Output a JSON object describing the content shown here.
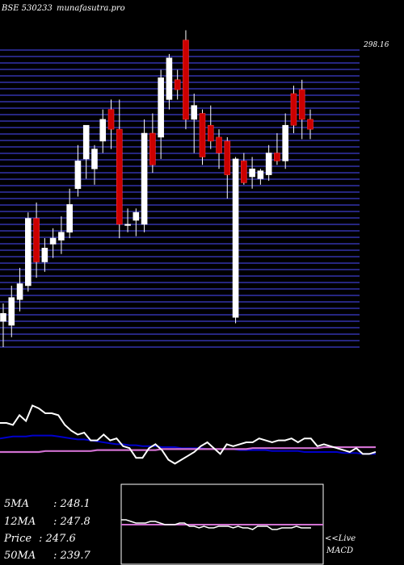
{
  "header": {
    "symbol": "BSE 530233",
    "site": "munafasutra.pro"
  },
  "colors": {
    "background": "#000000",
    "grid": "#3333aa",
    "up_candle": "#ffffff",
    "down_candle": "#cc0000",
    "price_line": "#ffffff",
    "ma_short": "#d070d0",
    "ma_long": "#0000cc",
    "signal_line": "#d070d0",
    "frame": "#ffffff"
  },
  "stats": [
    {
      "label": "5MA",
      "value": ": 248.1"
    },
    {
      "label": "12MA",
      "value": ": 247.8"
    },
    {
      "label": "Price",
      "value": "  : 247.6"
    },
    {
      "label": "50MA",
      "value": ": 239.7"
    }
  ],
  "macd": {
    "live_label": "<<Live",
    "label": "MACD"
  },
  "chart_data": [
    {
      "type": "candlestick",
      "title": "BSE 530233 munafasutra.pro",
      "ylim": [
        150,
        300
      ],
      "y_tick_labels_top": "298.16",
      "grid": true,
      "candles": [
        {
          "o": 163,
          "h": 172,
          "l": 150,
          "c": 167
        },
        {
          "o": 161,
          "h": 181,
          "l": 155,
          "c": 175
        },
        {
          "o": 174,
          "h": 190,
          "l": 168,
          "c": 182
        },
        {
          "o": 181,
          "h": 218,
          "l": 178,
          "c": 215
        },
        {
          "o": 215,
          "h": 223,
          "l": 185,
          "c": 193
        },
        {
          "o": 193,
          "h": 205,
          "l": 188,
          "c": 200
        },
        {
          "o": 202,
          "h": 210,
          "l": 195,
          "c": 205
        },
        {
          "o": 204,
          "h": 216,
          "l": 197,
          "c": 208
        },
        {
          "o": 208,
          "h": 230,
          "l": 205,
          "c": 222
        },
        {
          "o": 230,
          "h": 252,
          "l": 226,
          "c": 244
        },
        {
          "o": 245,
          "h": 262,
          "l": 235,
          "c": 262
        },
        {
          "o": 240,
          "h": 252,
          "l": 232,
          "c": 250
        },
        {
          "o": 254,
          "h": 270,
          "l": 248,
          "c": 265
        },
        {
          "o": 270,
          "h": 275,
          "l": 250,
          "c": 260
        },
        {
          "o": 260,
          "h": 275,
          "l": 205,
          "c": 212
        },
        {
          "o": 212,
          "h": 220,
          "l": 208,
          "c": 212
        },
        {
          "o": 214,
          "h": 220,
          "l": 206,
          "c": 218
        },
        {
          "o": 212,
          "h": 265,
          "l": 208,
          "c": 258
        },
        {
          "o": 258,
          "h": 268,
          "l": 238,
          "c": 242
        },
        {
          "o": 256,
          "h": 290,
          "l": 245,
          "c": 286
        },
        {
          "o": 275,
          "h": 298,
          "l": 270,
          "c": 296
        },
        {
          "o": 285,
          "h": 290,
          "l": 275,
          "c": 280
        },
        {
          "o": 305,
          "h": 310,
          "l": 260,
          "c": 265
        },
        {
          "o": 265,
          "h": 278,
          "l": 248,
          "c": 272
        },
        {
          "o": 268,
          "h": 270,
          "l": 242,
          "c": 246
        },
        {
          "o": 262,
          "h": 272,
          "l": 250,
          "c": 254
        },
        {
          "o": 256,
          "h": 260,
          "l": 240,
          "c": 248
        },
        {
          "o": 254,
          "h": 256,
          "l": 225,
          "c": 237
        },
        {
          "o": 165,
          "h": 246,
          "l": 162,
          "c": 245
        },
        {
          "o": 244,
          "h": 248,
          "l": 232,
          "c": 233
        },
        {
          "o": 236,
          "h": 246,
          "l": 230,
          "c": 240
        },
        {
          "o": 235,
          "h": 240,
          "l": 232,
          "c": 239
        },
        {
          "o": 237,
          "h": 252,
          "l": 234,
          "c": 248
        },
        {
          "o": 248,
          "h": 258,
          "l": 242,
          "c": 244
        },
        {
          "o": 244,
          "h": 268,
          "l": 240,
          "c": 262
        },
        {
          "o": 278,
          "h": 282,
          "l": 258,
          "c": 262
        },
        {
          "o": 280,
          "h": 285,
          "l": 255,
          "c": 265
        },
        {
          "o": 265,
          "h": 270,
          "l": 255,
          "c": 260
        }
      ]
    },
    {
      "type": "line",
      "series": [
        {
          "key": "price",
          "values": [
            30,
            30,
            28,
            38,
            32,
            48,
            45,
            40,
            40,
            38,
            28,
            22,
            18,
            20,
            12,
            12,
            18,
            12,
            14,
            6,
            4,
            -6,
            -6,
            4,
            8,
            2,
            -8,
            -12,
            -8,
            -4,
            0,
            6,
            10,
            4,
            -2,
            8,
            6,
            8,
            10,
            10,
            14,
            12,
            10,
            12,
            12,
            14,
            10,
            14,
            14,
            6,
            8,
            6,
            4,
            2,
            0,
            4,
            -2,
            -2,
            0
          ]
        },
        {
          "key": "ma_long",
          "values": [
            14,
            15,
            16,
            16,
            16,
            17,
            17,
            17,
            17,
            16,
            15,
            14,
            13,
            13,
            12,
            11,
            10,
            9,
            8,
            8,
            7,
            7,
            6,
            6,
            6,
            5,
            5,
            5,
            4,
            4,
            4,
            4,
            3,
            3,
            3,
            3,
            3,
            2,
            2,
            2,
            2,
            2,
            1,
            1,
            1,
            1,
            1,
            0,
            0,
            0,
            0,
            0,
            0,
            -1,
            -1,
            -1,
            -2,
            -2,
            -2
          ]
        },
        {
          "key": "ma_short",
          "values": [
            0,
            0,
            0,
            0,
            0,
            0,
            0,
            1,
            1,
            1,
            1,
            1,
            1,
            1,
            1,
            2,
            2,
            2,
            2,
            2,
            2,
            2,
            2,
            2,
            2,
            3,
            3,
            3,
            3,
            3,
            3,
            3,
            3,
            3,
            3,
            3,
            3,
            3,
            3,
            4,
            4,
            4,
            4,
            4,
            4,
            4,
            4,
            4,
            4,
            4,
            5,
            5,
            5,
            5,
            5,
            5,
            5,
            5,
            5
          ]
        }
      ]
    },
    {
      "type": "line",
      "series": [
        {
          "key": "macd",
          "values": [
            6,
            6,
            4,
            2,
            2,
            2,
            4,
            4,
            2,
            0,
            0,
            0,
            2,
            2,
            -2,
            -2,
            -4,
            -2,
            -4,
            -4,
            -2,
            -2,
            -2,
            -4,
            -2,
            -4,
            -4,
            -6,
            -2,
            -2,
            -2,
            -6,
            -6,
            -4,
            -4,
            -4,
            -2,
            -4,
            -4,
            -4
          ]
        },
        {
          "key": "signal",
          "values": [
            0,
            0,
            0,
            0,
            0,
            0,
            0,
            0,
            0,
            0,
            0,
            0,
            0,
            0,
            0,
            0,
            0,
            0,
            0,
            0,
            0,
            0,
            0,
            0,
            0,
            0,
            0,
            0,
            0,
            0,
            0,
            0,
            0,
            0,
            0,
            0,
            0,
            0,
            0,
            0
          ]
        }
      ]
    }
  ]
}
